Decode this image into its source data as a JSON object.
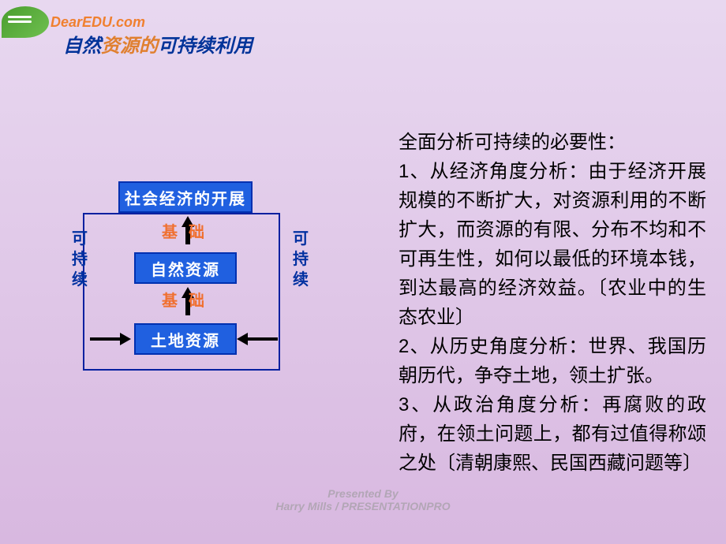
{
  "logo": {
    "text": "DearEDU.com"
  },
  "title": {
    "pre": "自然",
    "accent": "资源的",
    "post": "可持续利用"
  },
  "diagram": {
    "boxes": {
      "top": "社会经济的开展",
      "mid": "自然资源",
      "bot": "土地资源"
    },
    "link_label": "基础",
    "side_label": "可持续",
    "colors": {
      "box_fill": "#2060e0",
      "box_border": "#0030b0",
      "frame_border": "#0020a0",
      "link_label": "#f07030",
      "side_label": "#0030a0",
      "arrow": "#000000"
    }
  },
  "body": [
    "全面分析可持续的必要性：",
    "1、从经济角度分析：由于经济开展规模的不断扩大，对资源利用的不断扩大，而资源的有限、分布不均和不可再生性，如何以最低的环境本钱，到达最高的经济效益。〔农业中的生态农业〕",
    "2、从历史角度分析：世界、我国历朝历代，争夺土地，领土扩张。",
    "3、从政治角度分析：再腐败的政府，在领土问题上，都有过值得称颂之处〔清朝康熙、民国西藏问题等〕"
  ],
  "footer": {
    "line1": "Presented By",
    "line2": "Harry Mills / PRESENTATIONPRO"
  }
}
